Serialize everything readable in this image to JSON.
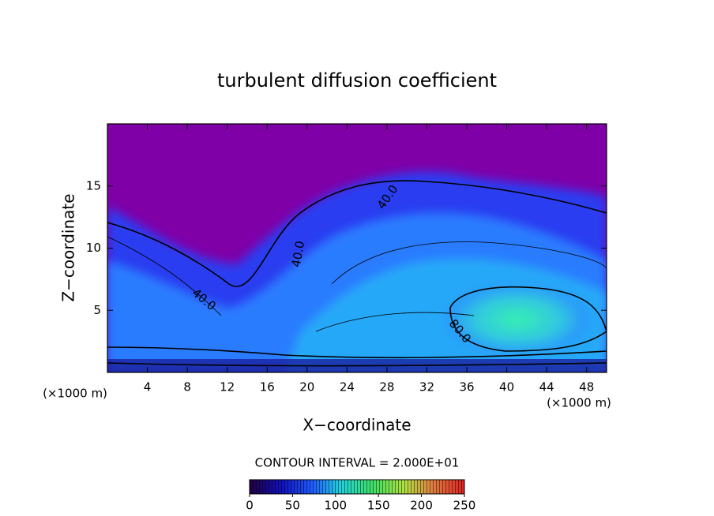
{
  "chart_data": {
    "type": "contour",
    "title": "turbulent diffusion coefficient",
    "x_label": "X−coordinate",
    "y_label": "Z−coordinate",
    "unit_label": "(×1000 m)",
    "xlim": [
      0,
      50
    ],
    "xticks": [
      4,
      8,
      12,
      16,
      20,
      24,
      28,
      32,
      36,
      40,
      44,
      48
    ],
    "ylim": [
      0,
      20
    ],
    "yticks": [
      5,
      10,
      15
    ],
    "contour_labels": [
      "40.0",
      "40.0",
      "40.0",
      "80.0"
    ],
    "contour_interval_label": "CONTOUR INTERVAL = 2.000E+01",
    "colorbar": {
      "lim": [
        0,
        250
      ],
      "ticks": [
        0,
        50,
        100,
        150,
        200,
        250
      ]
    }
  }
}
